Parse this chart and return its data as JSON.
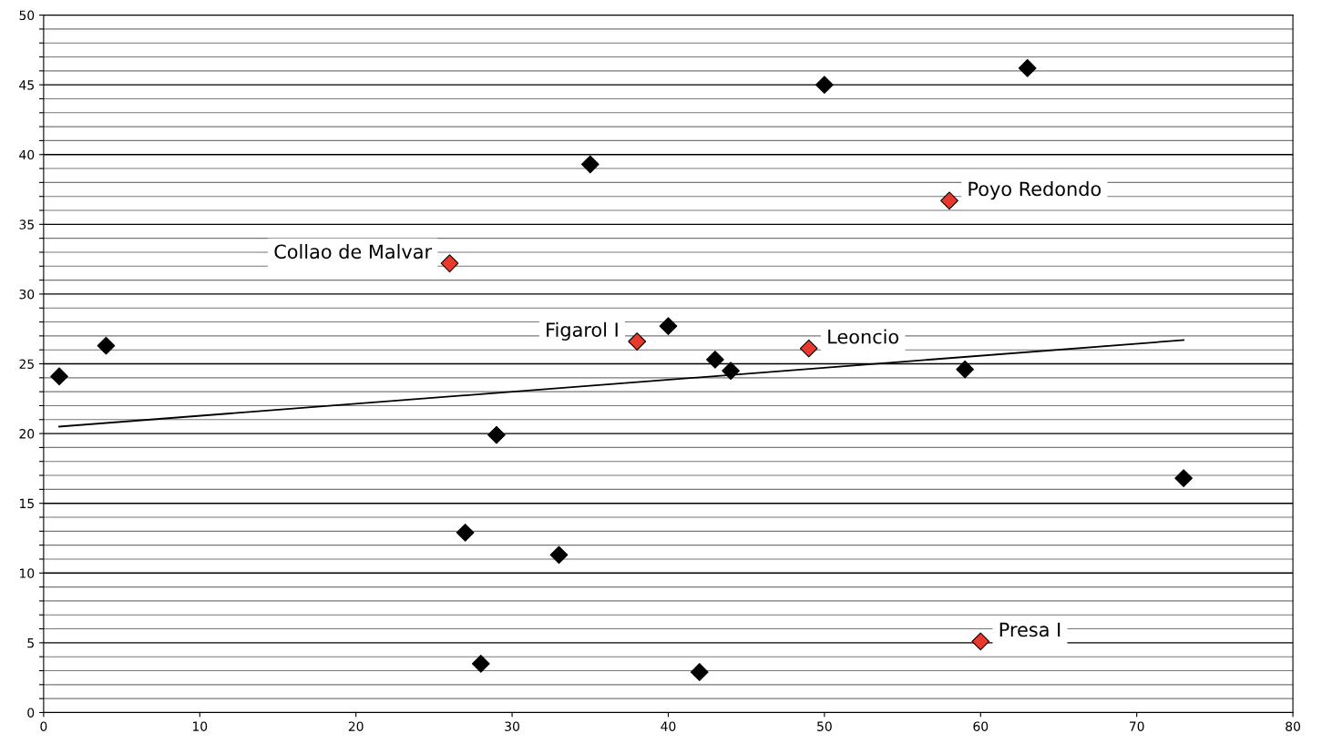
{
  "chart_data": {
    "type": "scatter",
    "marker": "diamond",
    "grid": "y",
    "legend": false,
    "xlim": [
      0,
      80
    ],
    "xticks": [
      0,
      10,
      20,
      30,
      40,
      50,
      60,
      70,
      80
    ],
    "ylim": [
      0,
      50
    ],
    "yticks": [
      0,
      {
        "value": 1,
        "label": null
      },
      {
        "value": 2,
        "label": null
      },
      {
        "value": 3,
        "label": null
      },
      {
        "value": 4,
        "label": null
      },
      5,
      {
        "value": 6,
        "label": null
      },
      {
        "value": 7,
        "label": null
      },
      {
        "value": 8,
        "label": null
      },
      {
        "value": 9,
        "label": null
      },
      10,
      {
        "value": 11,
        "label": null
      },
      {
        "value": 12,
        "label": null
      },
      {
        "value": 13,
        "label": null
      },
      {
        "value": 14,
        "label": null
      },
      15,
      {
        "value": 16,
        "label": null
      },
      {
        "value": 17,
        "label": null
      },
      {
        "value": 18,
        "label": null
      },
      {
        "value": 19,
        "label": null
      },
      20,
      {
        "value": 21,
        "label": null
      },
      {
        "value": 22,
        "label": null
      },
      {
        "value": 23,
        "label": null
      },
      {
        "value": 24,
        "label": null
      },
      25,
      {
        "value": 26,
        "label": null
      },
      {
        "value": 27,
        "label": null
      },
      {
        "value": 28,
        "label": null
      },
      {
        "value": 29,
        "label": null
      },
      30,
      {
        "value": 31,
        "label": null
      },
      {
        "value": 32,
        "label": null
      },
      {
        "value": 33,
        "label": null
      },
      {
        "value": 34,
        "label": null
      },
      35,
      {
        "value": 36,
        "label": null
      },
      {
        "value": 37,
        "label": null
      },
      {
        "value": 38,
        "label": null
      },
      {
        "value": 39,
        "label": null
      },
      40,
      {
        "value": 41,
        "label": null
      },
      {
        "value": 42,
        "label": null
      },
      {
        "value": 43,
        "label": null
      },
      {
        "value": 44,
        "label": null
      },
      45,
      {
        "value": 46,
        "label": null
      },
      {
        "value": 47,
        "label": null
      },
      {
        "value": 48,
        "label": null
      },
      {
        "value": 49,
        "label": null
      },
      50
    ],
    "series": [
      {
        "color": "#000000",
        "x": [
          1,
          4,
          27,
          28,
          29,
          33,
          35,
          40,
          42,
          43,
          44,
          50,
          59,
          63,
          73
        ],
        "values": [
          24.1,
          26.3,
          12.9,
          3.5,
          19.9,
          11.3,
          39.3,
          27.7,
          2.9,
          25.3,
          24.5,
          45,
          24.6,
          46.2,
          16.8
        ]
      },
      {
        "color": "#e8392d",
        "x": [
          26,
          38,
          49,
          58,
          60
        ],
        "values": [
          32.2,
          26.6,
          26.1,
          36.7,
          5.1
        ]
      },
      {
        "type": "line",
        "color": "#000000",
        "marker": "none",
        "x": [
          1,
          73
        ],
        "values": [
          20.5,
          26.7
        ]
      }
    ],
    "annotations": [
      {
        "text": "Collao de Malvar",
        "x": 26,
        "y": 32.2
      },
      {
        "text": "Figarol I",
        "x": 38,
        "y": 26.6
      },
      {
        "text": "Leoncio",
        "x": 49,
        "y": 26.1
      },
      {
        "text": "Poyo Redondo",
        "x": 58,
        "y": 36.7
      },
      {
        "text": "Presa I",
        "x": 60,
        "y": 5.1
      }
    ]
  }
}
